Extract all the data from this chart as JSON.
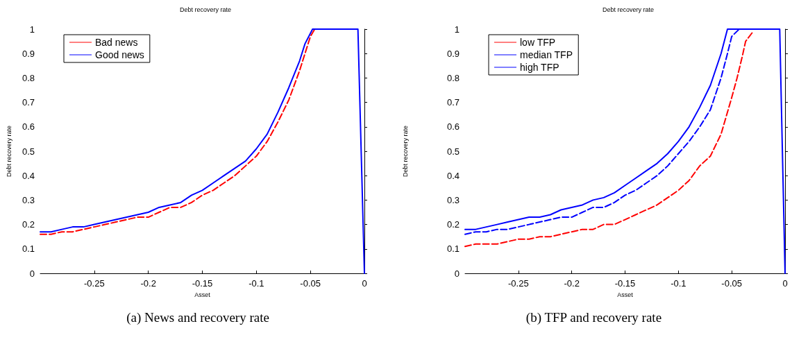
{
  "chart_data": [
    {
      "type": "line",
      "title": "Debt recovery rate",
      "xlabel": "Asset",
      "ylabel": "Debt recovery rate",
      "annotations": [
        "(a) News and recovery rate"
      ],
      "xlim": [
        -0.3,
        0
      ],
      "xticks": [
        -0.25,
        -0.2,
        -0.15,
        -0.1,
        -0.05,
        0
      ],
      "ylim": [
        0,
        1
      ],
      "yticks": [
        0,
        0.1,
        0.2,
        0.3,
        0.4,
        0.5,
        0.6,
        0.7,
        0.8,
        0.9,
        1
      ],
      "grid": false,
      "legend": "top left",
      "marker": "none",
      "series": [
        {
          "name": "Bad news",
          "color": "#ff0000",
          "line_style": "dashed",
          "x": [
            -0.3,
            -0.29,
            -0.28,
            -0.27,
            -0.26,
            -0.25,
            -0.24,
            -0.23,
            -0.22,
            -0.21,
            -0.2,
            -0.19,
            -0.18,
            -0.17,
            -0.16,
            -0.15,
            -0.14,
            -0.13,
            -0.12,
            -0.11,
            -0.1,
            -0.09,
            -0.08,
            -0.07,
            -0.06,
            -0.05,
            -0.046
          ],
          "values": [
            0.16,
            0.16,
            0.17,
            0.17,
            0.18,
            0.19,
            0.2,
            0.21,
            0.22,
            0.23,
            0.23,
            0.25,
            0.27,
            0.27,
            0.29,
            0.32,
            0.34,
            0.37,
            0.4,
            0.44,
            0.48,
            0.54,
            0.62,
            0.71,
            0.83,
            0.97,
            1.0
          ]
        },
        {
          "name": "Good news",
          "color": "#0000ff",
          "line_style": "solid",
          "x": [
            -0.3,
            -0.29,
            -0.28,
            -0.27,
            -0.26,
            -0.25,
            -0.24,
            -0.23,
            -0.22,
            -0.21,
            -0.2,
            -0.19,
            -0.18,
            -0.17,
            -0.16,
            -0.15,
            -0.14,
            -0.13,
            -0.12,
            -0.11,
            -0.1,
            -0.09,
            -0.08,
            -0.07,
            -0.06,
            -0.055,
            -0.048,
            -0.006,
            0
          ],
          "values": [
            0.17,
            0.17,
            0.18,
            0.19,
            0.19,
            0.2,
            0.21,
            0.22,
            0.23,
            0.24,
            0.25,
            0.27,
            0.28,
            0.29,
            0.32,
            0.34,
            0.37,
            0.4,
            0.43,
            0.46,
            0.51,
            0.57,
            0.66,
            0.76,
            0.87,
            0.94,
            1.0,
            1.0,
            0
          ]
        }
      ]
    },
    {
      "type": "line",
      "title": "Debt recovery rate",
      "xlabel": "Asset",
      "ylabel": "Debt recovery rate",
      "annotations": [
        "(b) TFP and recovery rate"
      ],
      "xlim": [
        -0.3,
        0
      ],
      "xticks": [
        -0.25,
        -0.2,
        -0.15,
        -0.1,
        -0.05,
        0
      ],
      "ylim": [
        0,
        1
      ],
      "yticks": [
        0,
        0.1,
        0.2,
        0.3,
        0.4,
        0.5,
        0.6,
        0.7,
        0.8,
        0.9,
        1
      ],
      "grid": false,
      "legend": "top left",
      "marker": "none",
      "series": [
        {
          "name": "low TFP",
          "color": "#ff0000",
          "line_style": "dashed",
          "x": [
            -0.3,
            -0.29,
            -0.28,
            -0.27,
            -0.26,
            -0.25,
            -0.24,
            -0.23,
            -0.22,
            -0.21,
            -0.2,
            -0.19,
            -0.18,
            -0.17,
            -0.16,
            -0.15,
            -0.14,
            -0.13,
            -0.12,
            -0.11,
            -0.1,
            -0.09,
            -0.08,
            -0.07,
            -0.06,
            -0.05,
            -0.045,
            -0.04,
            -0.037,
            -0.03
          ],
          "values": [
            0.11,
            0.12,
            0.12,
            0.12,
            0.13,
            0.14,
            0.14,
            0.15,
            0.15,
            0.16,
            0.17,
            0.18,
            0.18,
            0.2,
            0.2,
            0.22,
            0.24,
            0.26,
            0.28,
            0.31,
            0.34,
            0.38,
            0.44,
            0.48,
            0.57,
            0.72,
            0.8,
            0.89,
            0.95,
            0.99
          ]
        },
        {
          "name": "median TFP",
          "color": "#0000ff",
          "line_style": "dashed",
          "x": [
            -0.3,
            -0.29,
            -0.28,
            -0.27,
            -0.26,
            -0.25,
            -0.24,
            -0.23,
            -0.22,
            -0.21,
            -0.2,
            -0.19,
            -0.18,
            -0.17,
            -0.16,
            -0.15,
            -0.14,
            -0.13,
            -0.12,
            -0.11,
            -0.1,
            -0.09,
            -0.08,
            -0.07,
            -0.06,
            -0.054,
            -0.05,
            -0.043
          ],
          "values": [
            0.16,
            0.17,
            0.17,
            0.18,
            0.18,
            0.19,
            0.2,
            0.21,
            0.22,
            0.23,
            0.23,
            0.25,
            0.27,
            0.27,
            0.29,
            0.32,
            0.34,
            0.37,
            0.4,
            0.44,
            0.49,
            0.54,
            0.6,
            0.67,
            0.8,
            0.9,
            0.97,
            1.0
          ]
        },
        {
          "name": "high TFP",
          "color": "#0000ff",
          "line_style": "solid",
          "x": [
            -0.3,
            -0.29,
            -0.28,
            -0.27,
            -0.26,
            -0.25,
            -0.24,
            -0.23,
            -0.22,
            -0.21,
            -0.2,
            -0.19,
            -0.18,
            -0.17,
            -0.16,
            -0.15,
            -0.14,
            -0.13,
            -0.12,
            -0.11,
            -0.1,
            -0.09,
            -0.08,
            -0.07,
            -0.06,
            -0.054,
            -0.005,
            0
          ],
          "values": [
            0.18,
            0.18,
            0.19,
            0.2,
            0.21,
            0.22,
            0.23,
            0.23,
            0.24,
            0.26,
            0.27,
            0.28,
            0.3,
            0.31,
            0.33,
            0.36,
            0.39,
            0.42,
            0.45,
            0.49,
            0.54,
            0.6,
            0.68,
            0.77,
            0.9,
            1.0,
            1.0,
            0
          ]
        }
      ]
    }
  ]
}
